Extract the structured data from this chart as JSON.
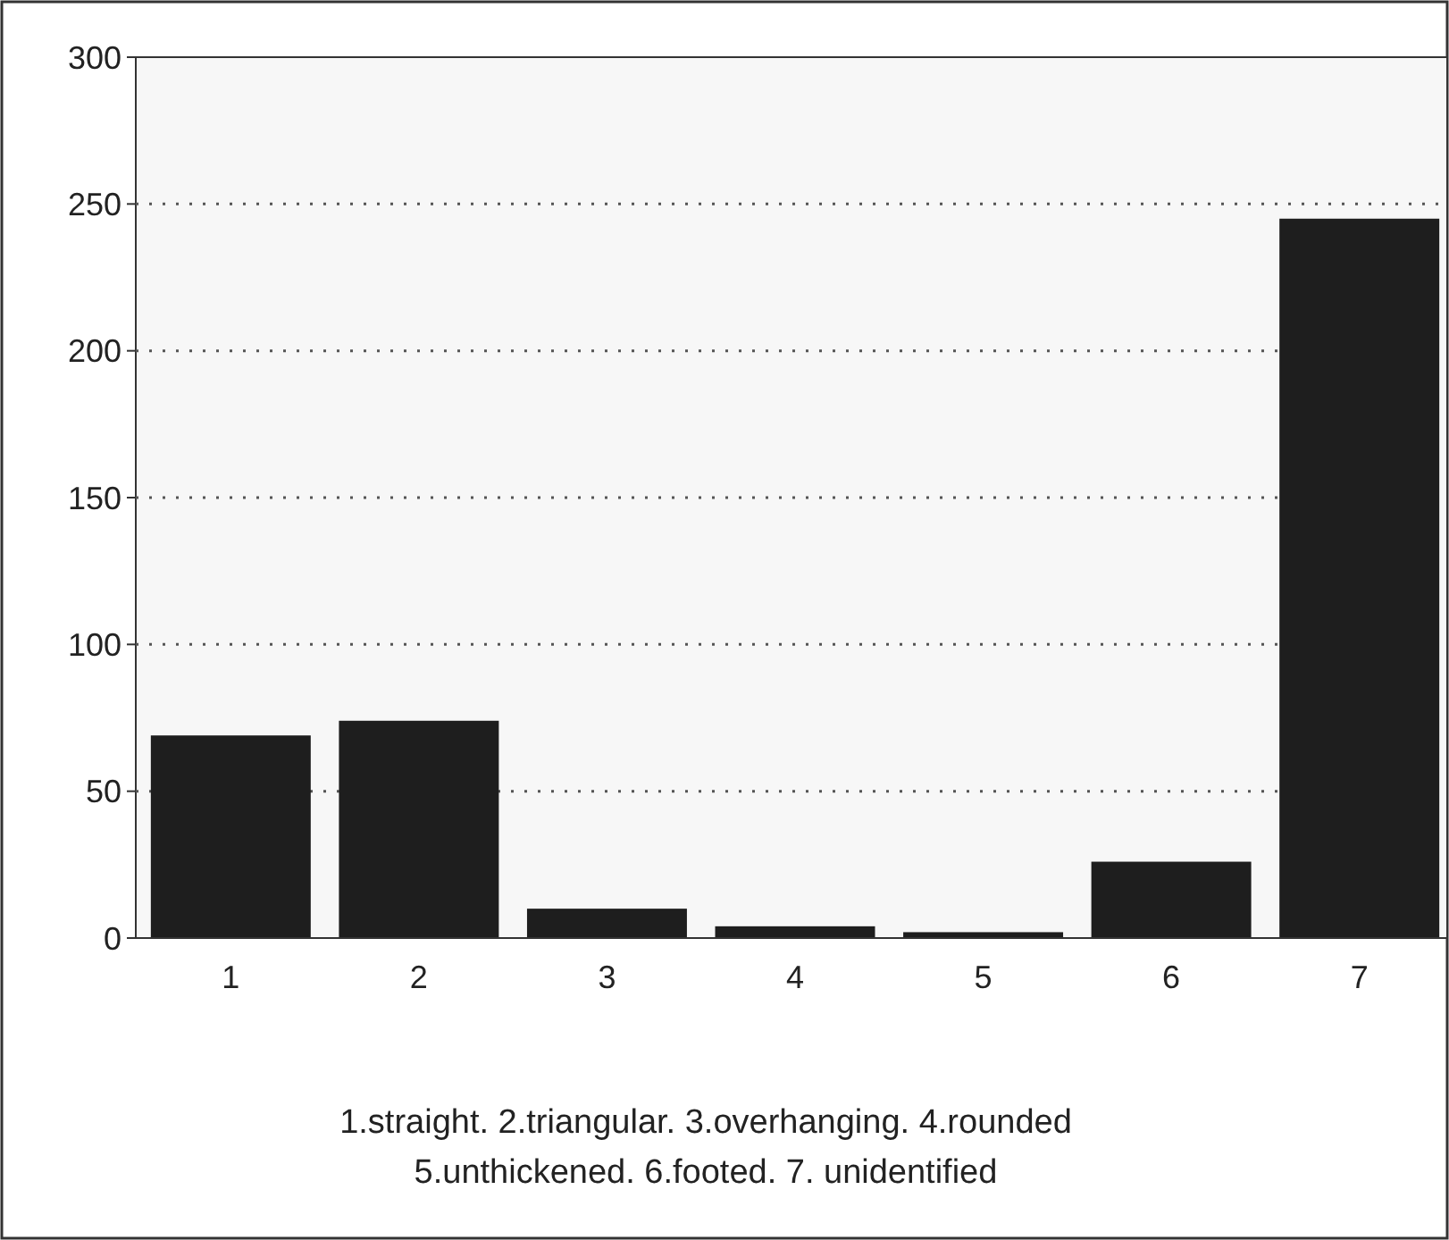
{
  "chart_data": {
    "type": "bar",
    "categories": [
      "1",
      "2",
      "3",
      "4",
      "5",
      "6",
      "7"
    ],
    "values": [
      69,
      74,
      10,
      4,
      2,
      26,
      245
    ],
    "color": "#1e1e1e",
    "ylim": [
      0,
      300
    ],
    "yticks": [
      0,
      50,
      100,
      150,
      200,
      250,
      300
    ],
    "grid": "y",
    "annotations": [
      "1.straight. 2.triangular. 3.overhanging. 4.rounded",
      "5.unthickened. 6.footed. 7. unidentified"
    ]
  }
}
